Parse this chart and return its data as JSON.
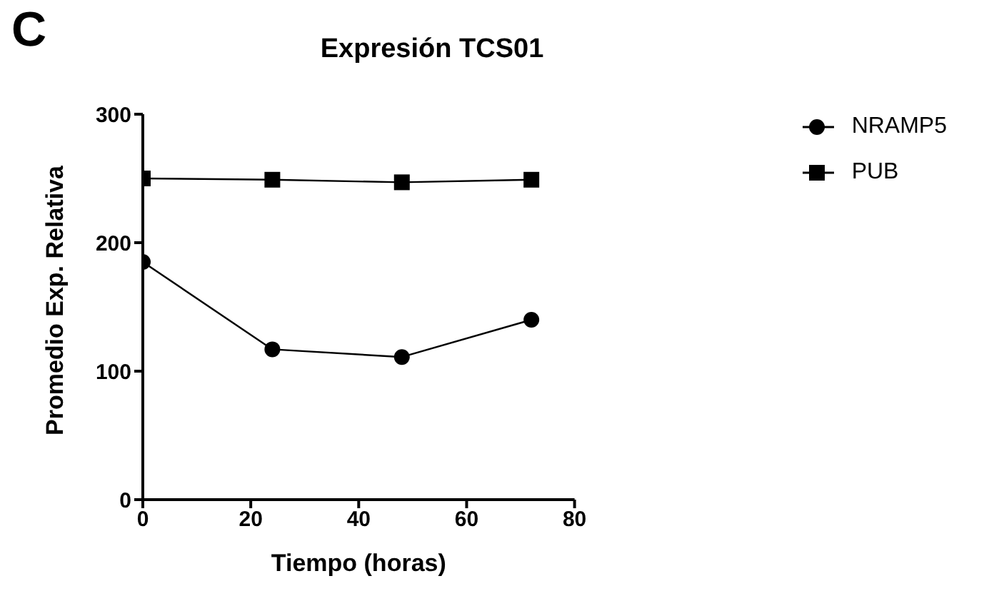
{
  "chart_data": {
    "type": "line",
    "title": "Expresión TCS01",
    "xlabel": "Tiempo (horas)",
    "ylabel": "Promedio Exp. Relativa",
    "annotations": [
      "C"
    ],
    "x": [
      0,
      24,
      48,
      72
    ],
    "series": [
      {
        "name": "NRAMP5",
        "color": "#000000",
        "marker": "circle",
        "values": [
          185,
          117,
          111,
          140
        ]
      },
      {
        "name": "PUB",
        "color": "#000000",
        "marker": "square",
        "values": [
          250,
          249,
          247,
          249
        ]
      }
    ],
    "xlim": [
      0,
      80
    ],
    "xticks": [
      0,
      20,
      40,
      60,
      80
    ],
    "ylim": [
      0,
      300
    ],
    "yticks": [
      0,
      100,
      200,
      300
    ],
    "legend": "top right"
  }
}
